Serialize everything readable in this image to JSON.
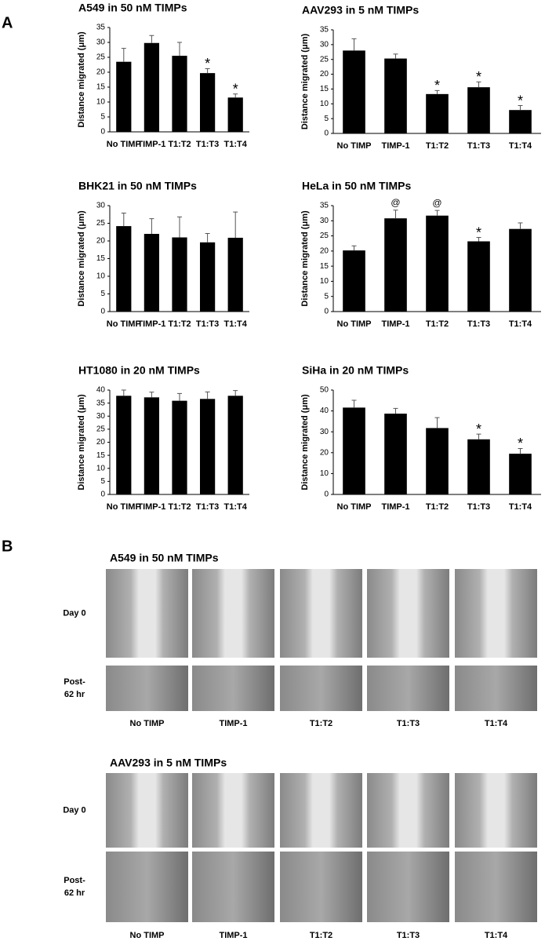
{
  "chart_data": [
    {
      "type": "bar",
      "title": "A549 in 50 nM TIMPs",
      "ylabel": "Distance migrated (μm)",
      "categories": [
        "No TIMP",
        "TIMP-1",
        "T1:T2",
        "T1:T3",
        "T1:T4"
      ],
      "values": [
        23.5,
        29.8,
        25.5,
        19.7,
        11.5
      ],
      "errors": [
        4.5,
        2.5,
        4.5,
        1.5,
        1.2
      ],
      "annotations": [
        null,
        null,
        null,
        "*",
        "*"
      ],
      "color": "#000000",
      "ylim": [
        0,
        35
      ],
      "yticks": [
        0,
        5,
        10,
        15,
        20,
        25,
        30,
        35
      ]
    },
    {
      "type": "bar",
      "title": "AAV293 in 5 nM TIMPs",
      "ylabel": "Distance migrated (μm)",
      "categories": [
        "No TIMP",
        "TIMP-1",
        "T1:T2",
        "T1:T3",
        "T1:T4"
      ],
      "values": [
        28,
        25.3,
        13.3,
        15.6,
        7.9
      ],
      "errors": [
        4,
        1.5,
        1.2,
        1.8,
        1.5
      ],
      "annotations": [
        null,
        null,
        "*",
        "*",
        "*"
      ],
      "color": "#000000",
      "ylim": [
        0,
        35
      ],
      "yticks": [
        0,
        5,
        10,
        15,
        20,
        25,
        30,
        35
      ]
    },
    {
      "type": "bar",
      "title": "BHK21 in 50 nM TIMPs",
      "ylabel": "Distance migrated (μm)",
      "categories": [
        "No TIMP",
        "TIMP-1",
        "T1:T2",
        "T1:T3",
        "T1:T4"
      ],
      "values": [
        24.2,
        22,
        21,
        19.6,
        20.9
      ],
      "errors": [
        3.7,
        4.3,
        5.8,
        2.5,
        7.3
      ],
      "annotations": [
        null,
        null,
        null,
        null,
        null
      ],
      "color": "#000000",
      "ylim": [
        0,
        30
      ],
      "yticks": [
        0,
        5,
        10,
        15,
        20,
        25,
        30
      ]
    },
    {
      "type": "bar",
      "title": "HeLa in 50 nM TIMPs",
      "ylabel": "Distance migrated (μm)",
      "categories": [
        "No TIMP",
        "TIMP-1",
        "T1:T2",
        "T1:T3",
        "T1:T4"
      ],
      "values": [
        20.2,
        30.8,
        31.7,
        23.2,
        27.3
      ],
      "errors": [
        1.5,
        2.7,
        1.7,
        1.3,
        2
      ],
      "annotations": [
        null,
        "@",
        "@",
        "*",
        null
      ],
      "color": "#000000",
      "ylim": [
        0,
        35
      ],
      "yticks": [
        0,
        5,
        10,
        15,
        20,
        25,
        30,
        35
      ]
    },
    {
      "type": "bar",
      "title": "HT1080 in 20 nM TIMPs",
      "ylabel": "Distance migrated (μm)",
      "categories": [
        "No TIMP",
        "TIMP-1",
        "T1:T2",
        "T1:T3",
        "T1:T4"
      ],
      "values": [
        37.8,
        37.2,
        35.9,
        36.6,
        37.8
      ],
      "errors": [
        2.2,
        2,
        2.8,
        2.7,
        2
      ],
      "annotations": [
        null,
        null,
        null,
        null,
        null
      ],
      "color": "#000000",
      "ylim": [
        0,
        40
      ],
      "yticks": [
        0,
        5,
        10,
        15,
        20,
        25,
        30,
        35,
        40
      ]
    },
    {
      "type": "bar",
      "title": "SiHa in 20 nM TIMPs",
      "ylabel": "Distance migrated (μm)",
      "categories": [
        "No TIMP",
        "TIMP-1",
        "T1:T2",
        "T1:T3",
        "T1:T4"
      ],
      "values": [
        41.6,
        38.7,
        31.8,
        26.4,
        19.5
      ],
      "errors": [
        3.5,
        2.5,
        5,
        2.5,
        2.5
      ],
      "annotations": [
        null,
        null,
        null,
        "*",
        "*"
      ],
      "color": "#000000",
      "ylim": [
        0,
        50
      ],
      "yticks": [
        0,
        10,
        20,
        30,
        40,
        50
      ]
    }
  ],
  "panel_labels": [
    "A",
    "B"
  ],
  "image_panels": [
    {
      "title": "A549 in 50 nM TIMPs",
      "rows": [
        [
          "Day 0"
        ],
        [
          "Post-",
          "62 hr"
        ]
      ],
      "columns": [
        "No TIMP",
        "TIMP-1",
        "T1:T2",
        "T1:T3",
        "T1:T4"
      ]
    },
    {
      "title": "AAV293 in 5 nM TIMPs",
      "rows": [
        [
          "Day 0"
        ],
        [
          "Post-",
          "62 hr"
        ]
      ],
      "columns": [
        "No TIMP",
        "TIMP-1",
        "T1:T2",
        "T1:T3",
        "T1:T4"
      ]
    }
  ]
}
